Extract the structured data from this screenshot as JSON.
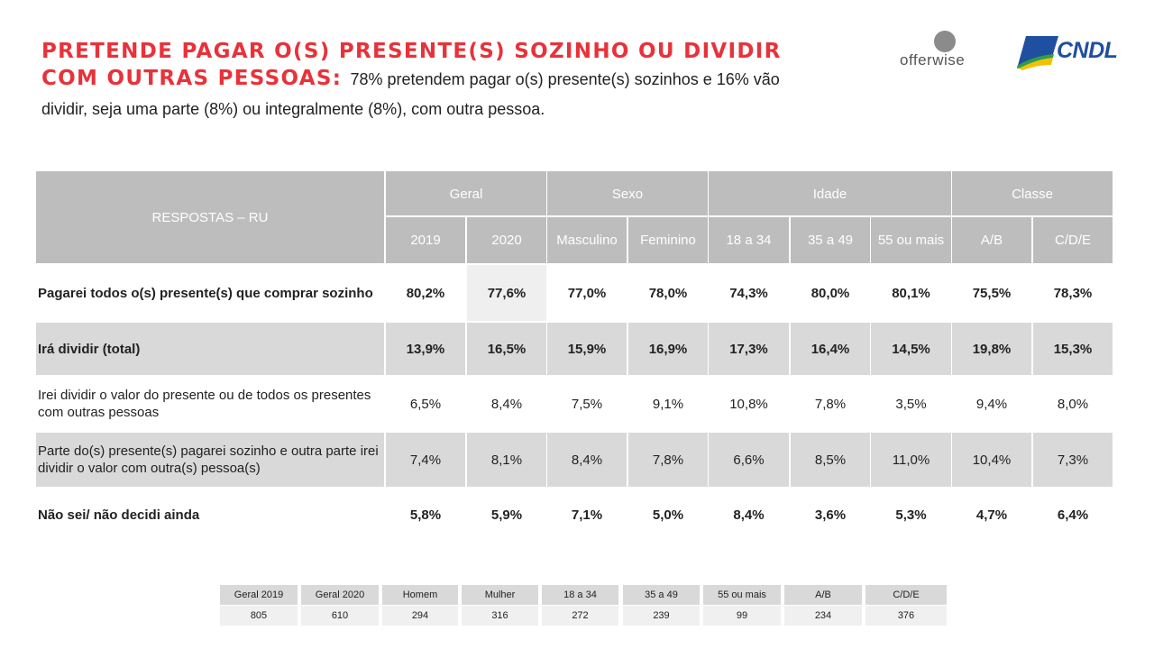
{
  "title": {
    "line1": "PRETENDE PAGAR O(S) PRESENTE(S) SOZINHO OU DIVIDIR",
    "line2_bold": "COM OUTRAS PESSOAS:",
    "line2_text": "78% pretendem pagar o(s) presente(s) sozinhos e 16% vão",
    "line3": "dividir, seja uma parte (8%) ou integralmente (8%), com outra pessoa."
  },
  "logos": {
    "offerwise": "offerwise",
    "cndl": "CNDL"
  },
  "table": {
    "header_label": "RESPOSTAS – RU",
    "groups": [
      "Geral",
      "Sexo",
      "Idade",
      "Classe"
    ],
    "columns": [
      "2019",
      "2020",
      "Masculino",
      "Feminino",
      "18 a 34",
      "35 a 49",
      "55 ou mais",
      "A/B",
      "C/D/E"
    ],
    "rows": [
      {
        "label": "Pagarei todos o(s) presente(s) que comprar sozinho",
        "values": [
          "80,2%",
          "77,6%",
          "77,0%",
          "78,0%",
          "74,3%",
          "80,0%",
          "80,1%",
          "75,5%",
          "78,3%"
        ]
      },
      {
        "label": "Irá dividir (total)",
        "values": [
          "13,9%",
          "16,5%",
          "15,9%",
          "16,9%",
          "17,3%",
          "16,4%",
          "14,5%",
          "19,8%",
          "15,3%"
        ]
      },
      {
        "label": "Irei dividir o valor do presente ou de todos os presentes com outras pessoas",
        "values": [
          "6,5%",
          "8,4%",
          "7,5%",
          "9,1%",
          "10,8%",
          "7,8%",
          "3,5%",
          "9,4%",
          "8,0%"
        ]
      },
      {
        "label": "Parte do(s) presente(s) pagarei sozinho e outra parte irei dividir o valor com outra(s) pessoa(s)",
        "values": [
          "7,4%",
          "8,1%",
          "8,4%",
          "7,8%",
          "6,6%",
          "8,5%",
          "11,0%",
          "10,4%",
          "7,3%"
        ]
      },
      {
        "label": "Não sei/ não decidi ainda",
        "values": [
          "5,8%",
          "5,9%",
          "7,1%",
          "5,0%",
          "8,4%",
          "3,6%",
          "5,3%",
          "4,7%",
          "6,4%"
        ]
      }
    ]
  },
  "base": {
    "labels": [
      "Geral 2019",
      "Geral 2020",
      "Homem",
      "Mulher",
      "18 a 34",
      "35 a 49",
      "55 ou mais",
      "A/B",
      "C/D/E"
    ],
    "values": [
      "805",
      "610",
      "294",
      "316",
      "272",
      "239",
      "99",
      "234",
      "376"
    ]
  }
}
